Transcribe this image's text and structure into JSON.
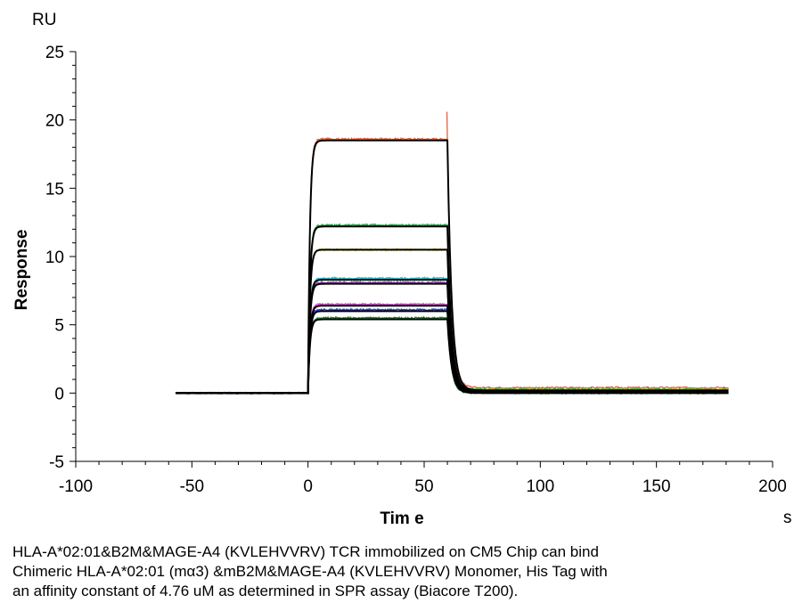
{
  "chart_data": {
    "type": "line",
    "xlabel": "Tim e",
    "ylabel": "Response",
    "y_unit": "RU",
    "x_unit": "s",
    "xlim": [
      -100,
      200
    ],
    "ylim": [
      -5,
      25
    ],
    "x_ticks": [
      -100,
      -50,
      0,
      50,
      100,
      150,
      200
    ],
    "y_ticks": [
      -5,
      0,
      5,
      10,
      15,
      20,
      25
    ],
    "grid": false,
    "injection": {
      "start": 0,
      "end": 60
    },
    "series": [
      {
        "color": "#e8603c",
        "plateau": 18.6,
        "residual": 0.4,
        "fit_plateau": 18.5
      },
      {
        "color": "#2ea043",
        "plateau": 12.3,
        "residual": 0.3,
        "fit_plateau": 12.2
      },
      {
        "color": "#d4c41a",
        "plateau": 10.5,
        "residual": 0.25,
        "fit_plateau": 10.5
      },
      {
        "color": "#18b8c8",
        "plateau": 8.4,
        "residual": 0.2,
        "fit_plateau": 8.3
      },
      {
        "color": "#8e44ad",
        "plateau": 8.1,
        "residual": 0.15,
        "fit_plateau": 8.0
      },
      {
        "color": "#d63fd6",
        "plateau": 6.5,
        "residual": 0.1,
        "fit_plateau": 6.4
      },
      {
        "color": "#1f3fd0",
        "plateau": 6.1,
        "residual": 0.05,
        "fit_plateau": 6.0
      },
      {
        "color": "#1b7a2a",
        "plateau": 5.5,
        "residual": 0.0,
        "fit_plateau": 5.4
      }
    ]
  },
  "caption": {
    "line1": "HLA-A*02:01&B2M&MAGE-A4 (KVLEHVVRV) TCR immobilized on CM5 Chip can bind",
    "line2": "Chimeric HLA-A*02:01 (mα3) &mB2M&MAGE-A4 (KVLEHVVRV) Monomer, His Tag with",
    "line3": "an affinity constant of 4.76 uM as determined in SPR assay (Biacore T200)."
  }
}
